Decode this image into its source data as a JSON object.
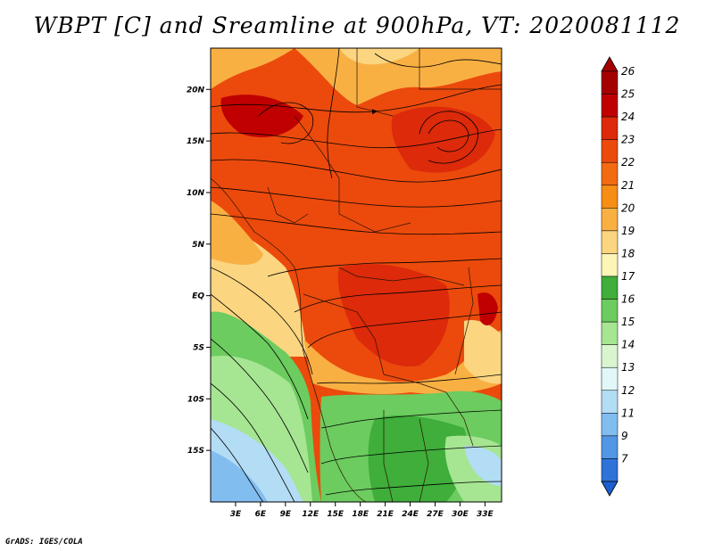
{
  "title": "WBPT [C] and Sreamline at 900hPa, VT: 2020081112",
  "credit": "GrADS: IGES/COLA",
  "map": {
    "lon_range": [
      0,
      35
    ],
    "lat_range": [
      -20,
      24
    ],
    "lat_ticks": [
      {
        "v": 20,
        "label": "20N"
      },
      {
        "v": 15,
        "label": "15N"
      },
      {
        "v": 10,
        "label": "10N"
      },
      {
        "v": 5,
        "label": "5N"
      },
      {
        "v": 0,
        "label": "EQ"
      },
      {
        "v": -5,
        "label": "5S"
      },
      {
        "v": -10,
        "label": "10S"
      },
      {
        "v": -15,
        "label": "15S"
      }
    ],
    "lon_ticks": [
      {
        "v": 3,
        "label": "3E"
      },
      {
        "v": 6,
        "label": "6E"
      },
      {
        "v": 9,
        "label": "9E"
      },
      {
        "v": 12,
        "label": "12E"
      },
      {
        "v": 15,
        "label": "15E"
      },
      {
        "v": 18,
        "label": "18E"
      },
      {
        "v": 21,
        "label": "21E"
      },
      {
        "v": 24,
        "label": "24E"
      },
      {
        "v": 27,
        "label": "27E"
      },
      {
        "v": 30,
        "label": "30E"
      },
      {
        "v": 33,
        "label": "33E"
      }
    ]
  },
  "colorbar": {
    "levels": [
      {
        "label": "26",
        "color": "#a50000"
      },
      {
        "label": "25",
        "color": "#c00000"
      },
      {
        "label": "24",
        "color": "#dc2a0a"
      },
      {
        "label": "23",
        "color": "#eb4a0c"
      },
      {
        "label": "22",
        "color": "#f26a12"
      },
      {
        "label": "21",
        "color": "#f68d14"
      },
      {
        "label": "20",
        "color": "#f9b043"
      },
      {
        "label": "19",
        "color": "#fbd580"
      },
      {
        "label": "18",
        "color": "#fdf5b6"
      },
      {
        "label": "17",
        "color": "#3fae3a"
      },
      {
        "label": "16",
        "color": "#6ccc5f"
      },
      {
        "label": "15",
        "color": "#a6e592"
      },
      {
        "label": "14",
        "color": "#d9f5cf"
      },
      {
        "label": "13",
        "color": "#e1f7f8"
      },
      {
        "label": "12",
        "color": "#b3dcf5"
      },
      {
        "label": "11",
        "color": "#82bdf0"
      },
      {
        "label": "9",
        "color": "#5197e5"
      },
      {
        "label": "7",
        "color": "#2f73d9"
      }
    ],
    "bottom_color": "#1a5fcf"
  }
}
